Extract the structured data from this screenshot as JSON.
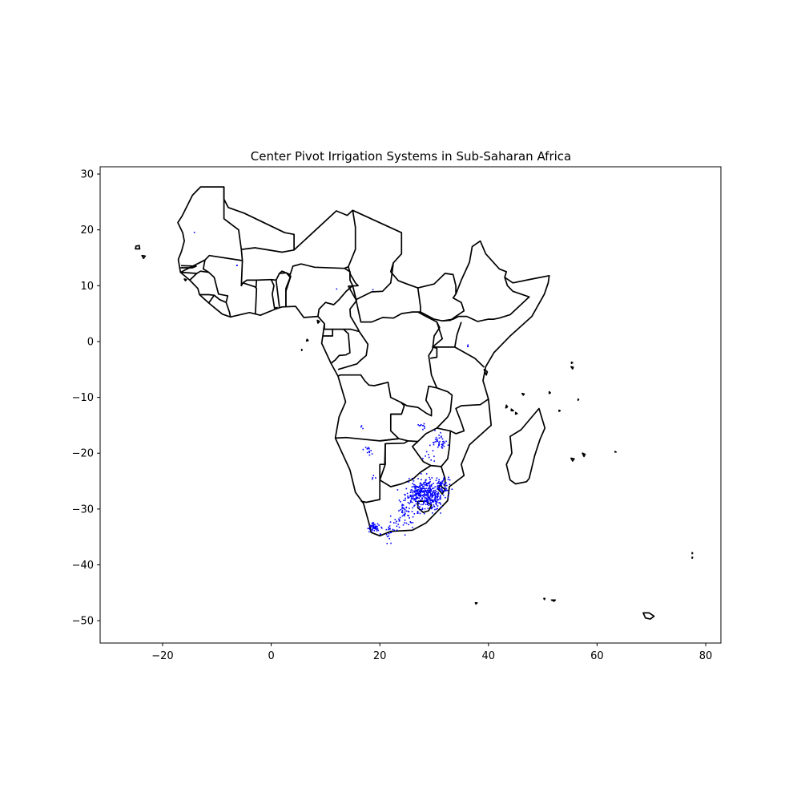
{
  "figure": {
    "title": "Center Pivot Irrigation Systems in Sub-Saharan Africa"
  },
  "chart_data": {
    "type": "map",
    "title": "Center Pivot Irrigation Systems in Sub-Saharan Africa",
    "xlabel": "",
    "ylabel": "",
    "xlim": [
      -31.5,
      82.8
    ],
    "ylim": [
      -54.0,
      31.3
    ],
    "grid": false,
    "legend": "none",
    "x_ticks": [
      -20,
      0,
      20,
      40,
      60,
      80
    ],
    "y_ticks": [
      30,
      20,
      10,
      0,
      -10,
      -20,
      -30,
      -40,
      -50
    ],
    "x_tick_labels": [
      "−20",
      "0",
      "20",
      "40",
      "60",
      "80"
    ],
    "y_tick_labels": [
      "30",
      "20",
      "10",
      "0",
      "−10",
      "−20",
      "−30",
      "−40",
      "−50"
    ],
    "colors": {
      "boundaries": "#000000",
      "pivots": "#0000ff"
    },
    "pivot_clusters": [
      {
        "lon": 17.8,
        "lat": -19.4,
        "count": 14,
        "spread": 0.8
      },
      {
        "lon": 19.0,
        "lat": -24.5,
        "count": 4,
        "spread": 0.6
      },
      {
        "lon": 16.5,
        "lat": -15.2,
        "count": 3,
        "spread": 0.5
      },
      {
        "lon": 27.5,
        "lat": -15.2,
        "count": 10,
        "spread": 0.8
      },
      {
        "lon": 31.0,
        "lat": -17.8,
        "count": 40,
        "spread": 1.2
      },
      {
        "lon": 29.0,
        "lat": -20.5,
        "count": 8,
        "spread": 1.0
      },
      {
        "lon": 29.0,
        "lat": -27.5,
        "count": 260,
        "spread": 2.3
      },
      {
        "lon": 26.5,
        "lat": -27.0,
        "count": 120,
        "spread": 1.6
      },
      {
        "lon": 25.0,
        "lat": -30.0,
        "count": 50,
        "spread": 1.8
      },
      {
        "lon": 31.5,
        "lat": -25.5,
        "count": 40,
        "spread": 1.2
      },
      {
        "lon": 18.8,
        "lat": -33.2,
        "count": 50,
        "spread": 0.7
      },
      {
        "lon": 21.5,
        "lat": -33.9,
        "count": 25,
        "spread": 1.4
      },
      {
        "lon": 24.0,
        "lat": -32.5,
        "count": 18,
        "spread": 1.4
      },
      {
        "lon": 36.0,
        "lat": -0.5,
        "count": 3,
        "spread": 0.3
      },
      {
        "lon": -14.5,
        "lat": 19.6,
        "count": 1,
        "spread": 0.2
      },
      {
        "lon": -6.5,
        "lat": 13.8,
        "count": 2,
        "spread": 0.2
      },
      {
        "lon": 12.0,
        "lat": 9.5,
        "count": 1,
        "spread": 0.2
      },
      {
        "lon": 18.5,
        "lat": 9.2,
        "count": 1,
        "spread": 0.2
      },
      {
        "lon": 28.5,
        "lat": -25.5,
        "count": 30,
        "spread": 1.0
      }
    ]
  }
}
